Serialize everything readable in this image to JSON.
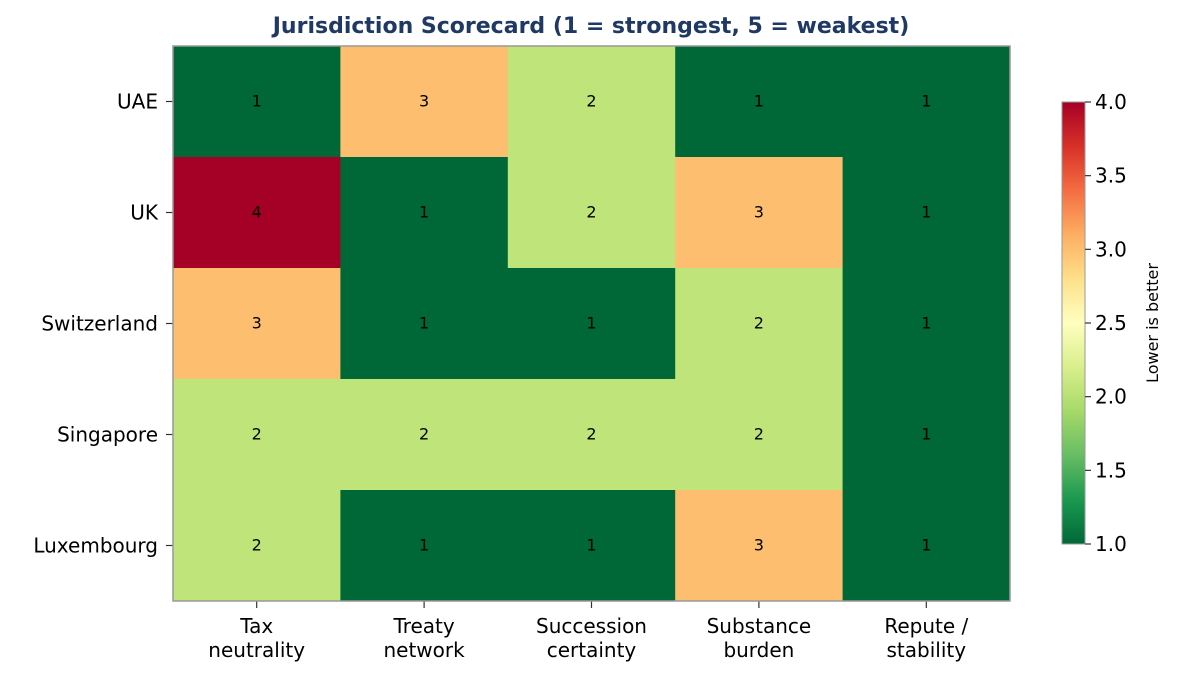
{
  "chart_data": {
    "type": "heatmap",
    "title": "Jurisdiction Scorecard (1 = strongest, 5 = weakest)",
    "rows": [
      "UAE",
      "UK",
      "Switzerland",
      "Singapore",
      "Luxembourg"
    ],
    "columns": [
      "Tax\nneutrality",
      "Treaty\nnetwork",
      "Succession\ncertainty",
      "Substance\nburden",
      "Repute /\nstability"
    ],
    "values": [
      [
        1,
        3,
        2,
        1,
        1
      ],
      [
        4,
        1,
        2,
        3,
        1
      ],
      [
        3,
        1,
        1,
        2,
        1
      ],
      [
        2,
        2,
        2,
        2,
        1
      ],
      [
        2,
        1,
        1,
        3,
        1
      ]
    ],
    "colormap": "RdYlGn_r",
    "colorbar": {
      "label": "Lower is better",
      "range": [
        1.0,
        4.0
      ],
      "ticks": [
        "1.0",
        "1.5",
        "2.0",
        "2.5",
        "3.0",
        "3.5",
        "4.0"
      ]
    },
    "cell_colors": {
      "1": "#006837",
      "2": "#bfe47a",
      "3": "#fdbf6f",
      "4": "#a50026"
    },
    "title_color": "#1f3864"
  }
}
